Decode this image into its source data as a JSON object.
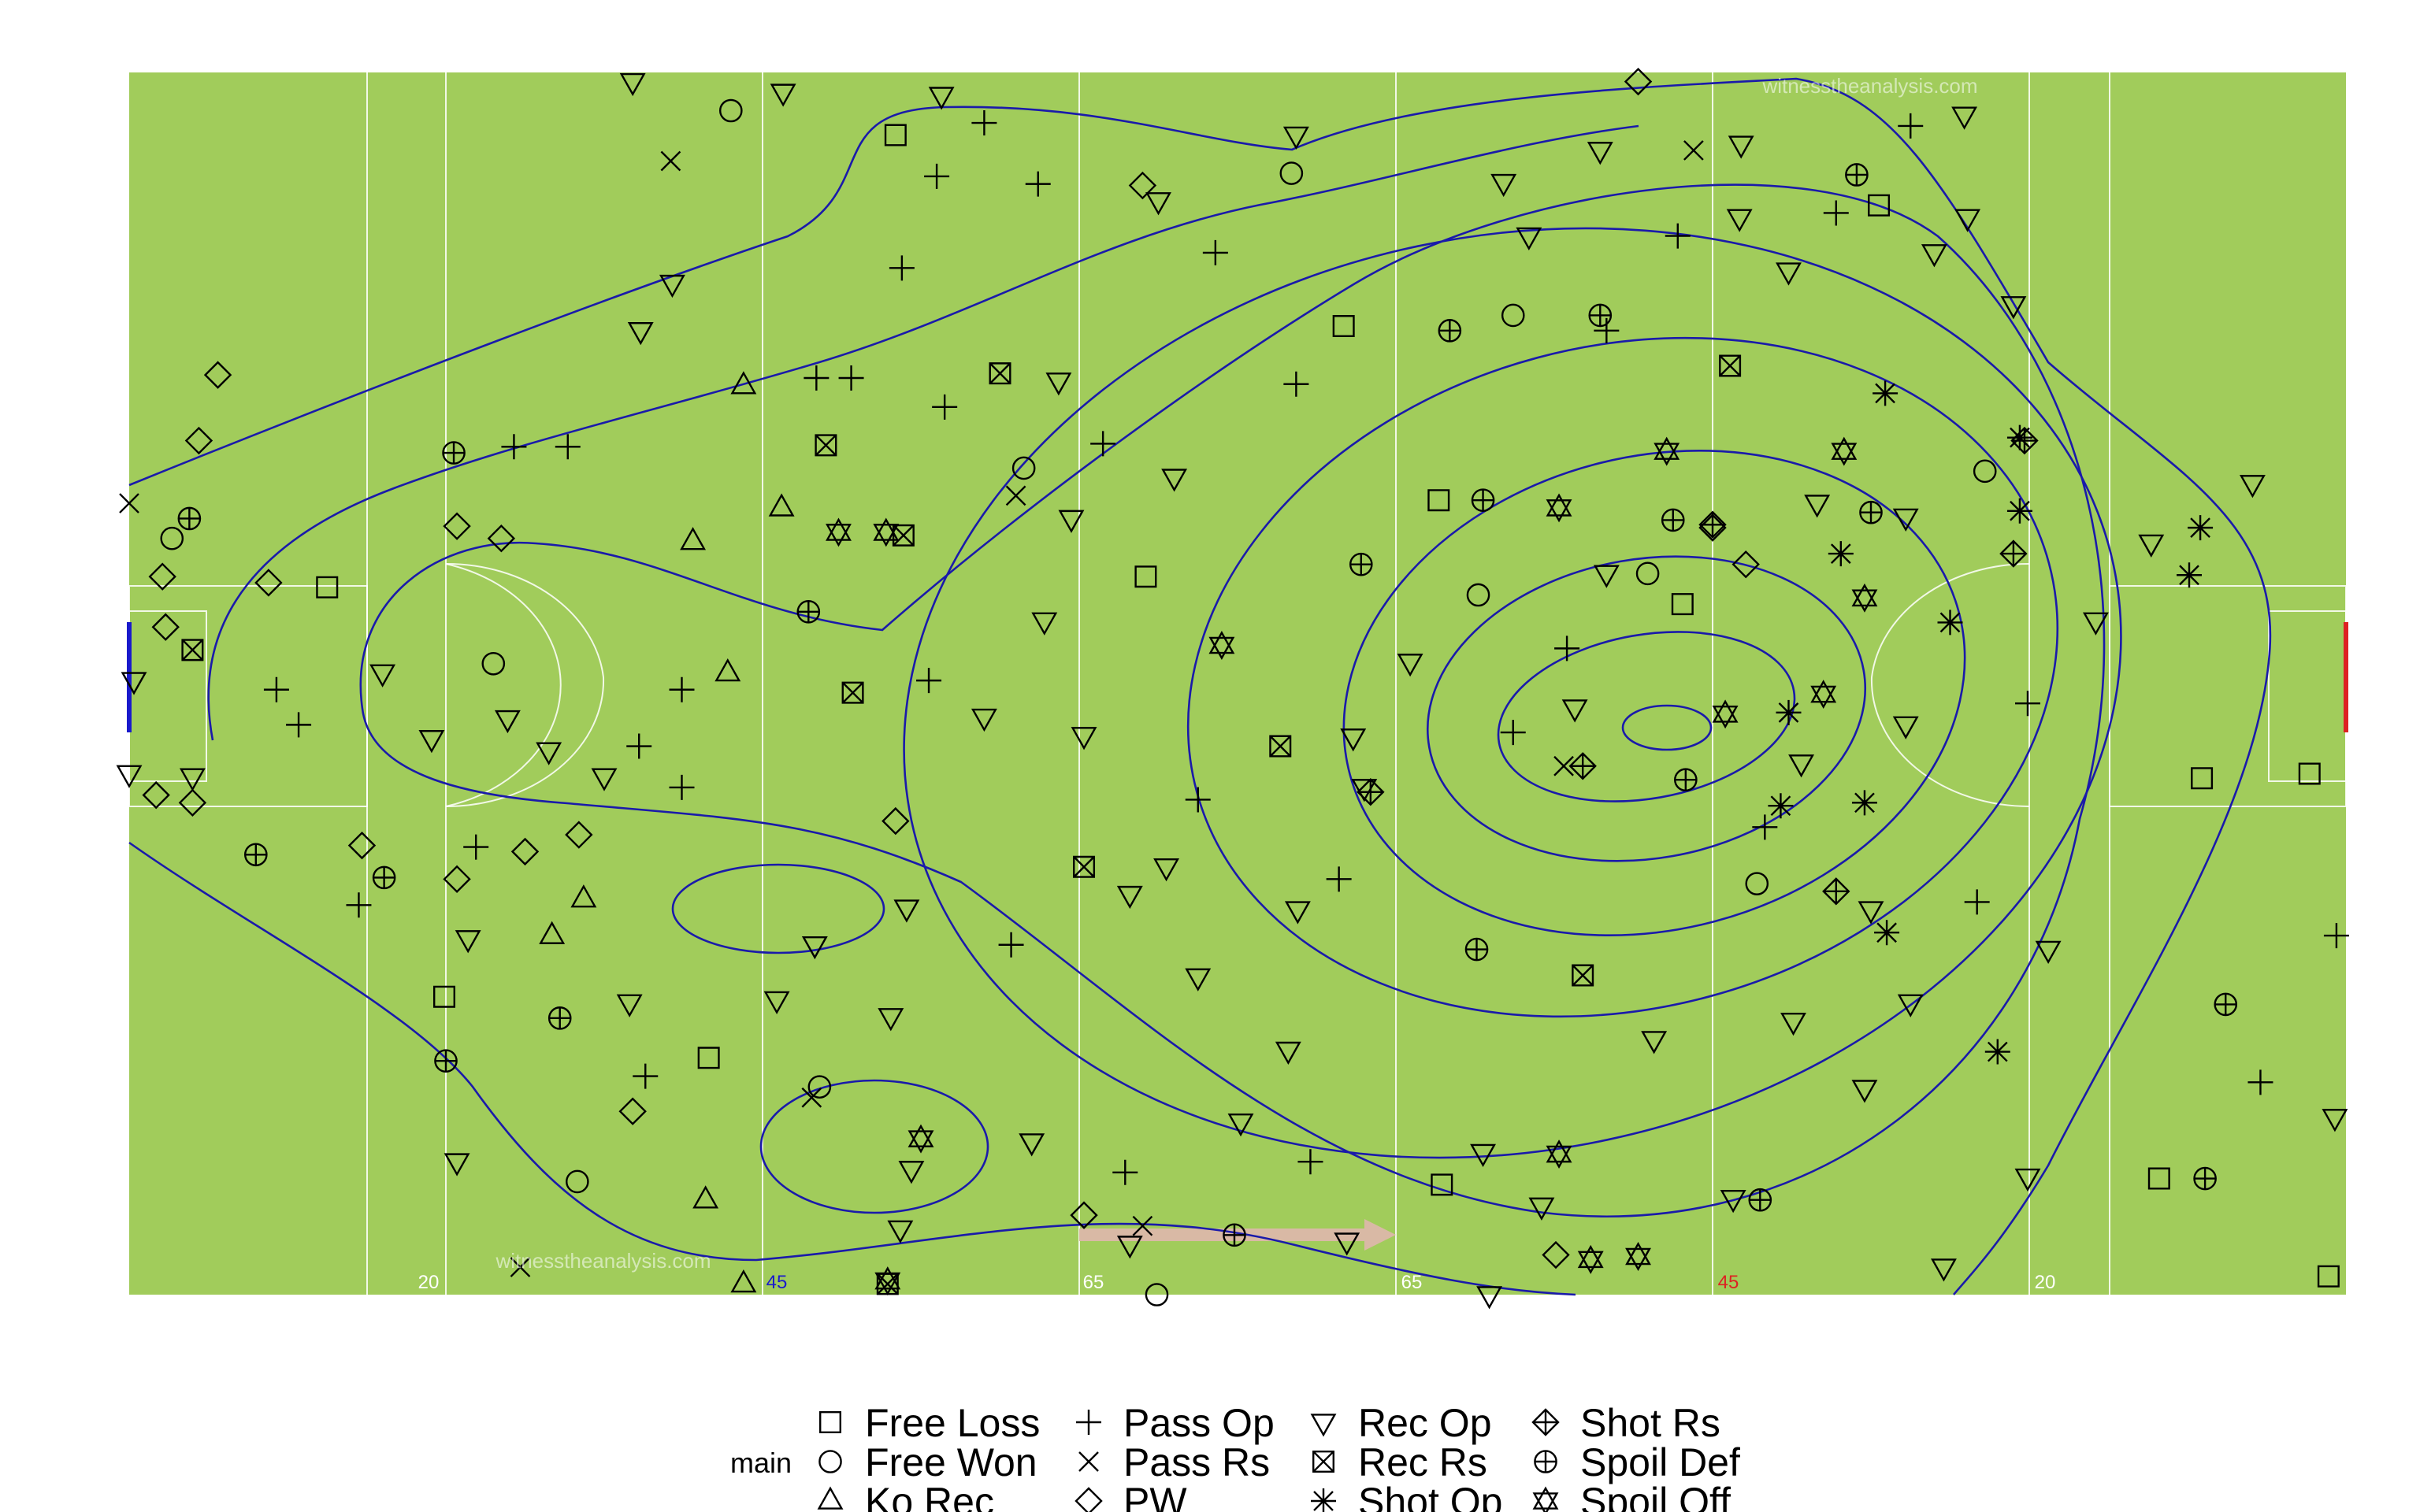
{
  "chart_data": {
    "type": "scatter",
    "xlim": [
      0,
      140
    ],
    "ylim": [
      0,
      80
    ],
    "legend_title": "main",
    "legend_position": "bottom",
    "color": "#000000",
    "field_color": "#a1cc5b",
    "contour_color": "#1a1aaa",
    "annotations": [
      {
        "text": "20",
        "color": "#ffffff"
      },
      {
        "text": "45",
        "color": "#1a1acc"
      },
      {
        "text": "65",
        "color": "#ffffff"
      },
      {
        "text": "65",
        "color": "#ffffff"
      },
      {
        "text": "45",
        "color": "#dd2222"
      },
      {
        "text": "20",
        "color": "#ffffff"
      }
    ],
    "watermarks": [
      "witnesstheanalysis.com",
      "witnesstheanalysis.com"
    ],
    "series": [
      {
        "name": "Free Loss",
        "marker": "square",
        "x": [
          48.4,
          76.7,
          82.7,
          64.2,
          12.5,
          110.5,
          130.9,
          137.7,
          19.9,
          36.6,
          82.9,
          128.2,
          138.9,
          98.1
        ],
        "y": [
          75.9,
          63.4,
          52.0,
          47.0,
          46.3,
          71.3,
          33.8,
          34.1,
          19.5,
          15.5,
          7.2,
          7.6,
          1.2,
          45.2
        ]
      },
      {
        "name": "Free Won",
        "marker": "circle",
        "x": [
          38.0,
          73.4,
          56.5,
          2.7,
          23.0,
          85.2,
          117.2,
          43.6,
          28.3,
          64.9,
          102.8,
          95.9,
          87.4
        ],
        "y": [
          77.5,
          73.4,
          54.1,
          49.5,
          41.3,
          45.8,
          53.9,
          13.6,
          7.4,
          0,
          26.9,
          47.2,
          64.1
        ]
      },
      {
        "name": "Ko Rec",
        "marker": "triangle-up",
        "x": [
          38.8,
          41.2,
          35.6,
          37.8,
          28.7,
          26.7,
          36.4,
          38.8
        ],
        "y": [
          59.5,
          51.5,
          49.3,
          40.7,
          25.9,
          23.5,
          6.2,
          0.7
        ]
      },
      {
        "name": "Pass Op",
        "marker": "plus",
        "x": [
          54.0,
          51.0,
          57.4,
          68.6,
          48.8,
          43.4,
          45.6,
          51.5,
          27.7,
          24.3,
          9.3,
          10.7,
          34.9,
          32.2,
          34.9,
          21.9,
          14.5,
          32.6,
          55.7,
          62.9,
          74.6,
          97.8,
          93.3,
          90.8,
          87.4,
          103.3,
          119.9,
          139.4,
          134.6,
          116.7,
          112.5,
          107.8,
          76.4,
          67.5,
          73.7,
          61.5,
          50.5
        ],
        "y": [
          76.7,
          73.2,
          72.7,
          68.2,
          67.2,
          60.0,
          60.0,
          58.1,
          55.5,
          55.5,
          39.6,
          37.3,
          39.6,
          35.9,
          33.2,
          29.3,
          25.5,
          14.3,
          22.9,
          8.0,
          8.7,
          69.3,
          63.1,
          42.3,
          36.8,
          30.6,
          38.7,
          23.5,
          13.9,
          25.7,
          76.5,
          70.8,
          27.2,
          32.4,
          59.6,
          55.7,
          40.2
        ]
      },
      {
        "name": "Pass Rs",
        "marker": "cross",
        "x": [
          34.2,
          0,
          56.0,
          24.7,
          43.1,
          64.0,
          98.8,
          90.6
        ],
        "y": [
          74.2,
          51.8,
          52.3,
          1.8,
          12.9,
          4.5,
          74.9,
          34.6
        ]
      },
      {
        "name": "PW",
        "marker": "diamond",
        "x": [
          95.3,
          64.0,
          5.6,
          4.4,
          2.1,
          2.3,
          1.7,
          4.0,
          8.8,
          20.7,
          23.5,
          14.7,
          20.7,
          25.0,
          28.4,
          48.4,
          31.8,
          60.3,
          102.1,
          90.1,
          100.0
        ],
        "y": [
          79.4,
          72.6,
          60.2,
          55.9,
          47.0,
          43.7,
          32.7,
          32.2,
          46.6,
          50.3,
          49.5,
          29.4,
          27.2,
          29.0,
          30.1,
          31.0,
          12.0,
          5.2,
          47.8,
          2.6,
          50.2
        ]
      },
      {
        "name": "Rec Op",
        "marker": "triangle-down",
        "x": [
          31.8,
          41.3,
          51.3,
          73.7,
          101.8,
          115.9,
          65.0,
          34.3,
          32.3,
          116.1,
          114.0,
          119.0,
          134.1,
          127.7,
          124.2,
          0.3,
          0.0,
          4.0,
          19.1,
          23.9,
          26.5,
          30.0,
          16.0,
          21.4,
          49.1,
          43.3,
          40.9,
          31.6,
          20.7,
          48.7,
          57.0,
          73.2,
          70.2,
          58.7,
          59.5,
          66.0,
          57.8,
          54.0,
          60.3,
          63.2,
          121.2,
          119.9,
          139.3,
          109.6,
          112.5,
          110.0,
          105.1,
          96.3,
          92.9,
          104.8,
          101.7,
          86.8,
          88.4,
          106.6,
          112.2,
          105.6,
          112.2,
          80.9,
          77.3,
          93.3,
          91.3,
          78.0,
          65.5,
          73.8,
          67.5,
          85.5,
          89.2,
          101.3,
          114.6,
          85.9,
          76.9,
          63.2,
          49.4,
          48.1
        ],
        "y": [
          79.4,
          78.7,
          78.5,
          75.9,
          75.3,
          77.2,
          71.6,
          66.2,
          63.1,
          70.5,
          68.2,
          64.8,
          53.1,
          49.2,
          44.1,
          40.2,
          34.1,
          33.9,
          36.4,
          37.7,
          35.6,
          33.9,
          40.7,
          23.3,
          25.3,
          22.9,
          19.3,
          19.1,
          8.7,
          4.3,
          10.0,
          16.0,
          11.3,
          59.8,
          50.8,
          53.5,
          44.1,
          37.8,
          36.6,
          26.2,
          22.6,
          7.7,
          11.6,
          13.5,
          19.1,
          25.2,
          17.9,
          16.7,
          74.9,
          67.0,
          70.5,
          72.8,
          69.3,
          51.8,
          50.9,
          34.8,
          37.3,
          41.4,
          36.5,
          47.2,
          38.4,
          33.2,
          28.0,
          25.2,
          20.8,
          9.3,
          5.8,
          6.3,
          1.8,
          0,
          3.5,
          3.3,
          8.2,
          18.2
        ]
      },
      {
        "name": "Rec Rs",
        "marker": "square-cross",
        "x": [
          55.0,
          44.0,
          48.9,
          4.0,
          45.7,
          72.7,
          60.3,
          91.8,
          47.9,
          101.1
        ],
        "y": [
          60.3,
          55.6,
          49.7,
          42.2,
          39.4,
          35.9,
          28.0,
          20.9,
          0.7,
          60.8
        ]
      },
      {
        "name": "Shot Op",
        "marker": "asterisk",
        "x": [
          110.9,
          119.4,
          119.4,
          108.1,
          115.0,
          104.8,
          104.3,
          109.6,
          111.0,
          118.0,
          130.8,
          130.1
        ],
        "y": [
          59.0,
          56.1,
          51.3,
          48.5,
          44.0,
          38.1,
          32.0,
          32.2,
          23.7,
          15.9,
          50.2,
          47.1
        ]
      },
      {
        "name": "Shot Rs",
        "marker": "diamond-plus",
        "x": [
          119.7,
          119.0,
          100.0,
          107.8,
          78.4,
          91.8
        ],
        "y": [
          55.9,
          48.5,
          50.4,
          26.4,
          32.9,
          34.6
        ]
      },
      {
        "name": "Spoil Def",
        "marker": "circle-plus",
        "x": [
          20.5,
          3.8,
          8.0,
          16.1,
          20.0,
          27.2,
          42.9,
          77.8,
          85.5,
          83.4,
          92.9,
          109.1,
          97.5,
          98.3,
          85.1,
          69.8,
          103.0,
          131.1,
          132.4,
          110.0
        ],
        "y": [
          55.1,
          50.8,
          28.8,
          27.3,
          15.3,
          18.1,
          44.7,
          47.8,
          52.0,
          63.1,
          64.1,
          73.3,
          50.7,
          33.7,
          22.6,
          3.9,
          6.2,
          7.6,
          19.0,
          51.2
        ]
      },
      {
        "name": "Spoil Off",
        "marker": "star",
        "x": [
          44.8,
          47.8,
          50.0,
          47.9,
          69.0,
          90.3,
          109.6,
          107.0,
          100.8,
          90.3,
          92.3,
          95.3,
          108.3,
          97.1
        ],
        "y": [
          49.9,
          49.9,
          10.2,
          0.9,
          42.5,
          51.5,
          45.6,
          39.3,
          38.0,
          9.2,
          2.3,
          2.5,
          55.2,
          55.2
        ]
      }
    ]
  }
}
